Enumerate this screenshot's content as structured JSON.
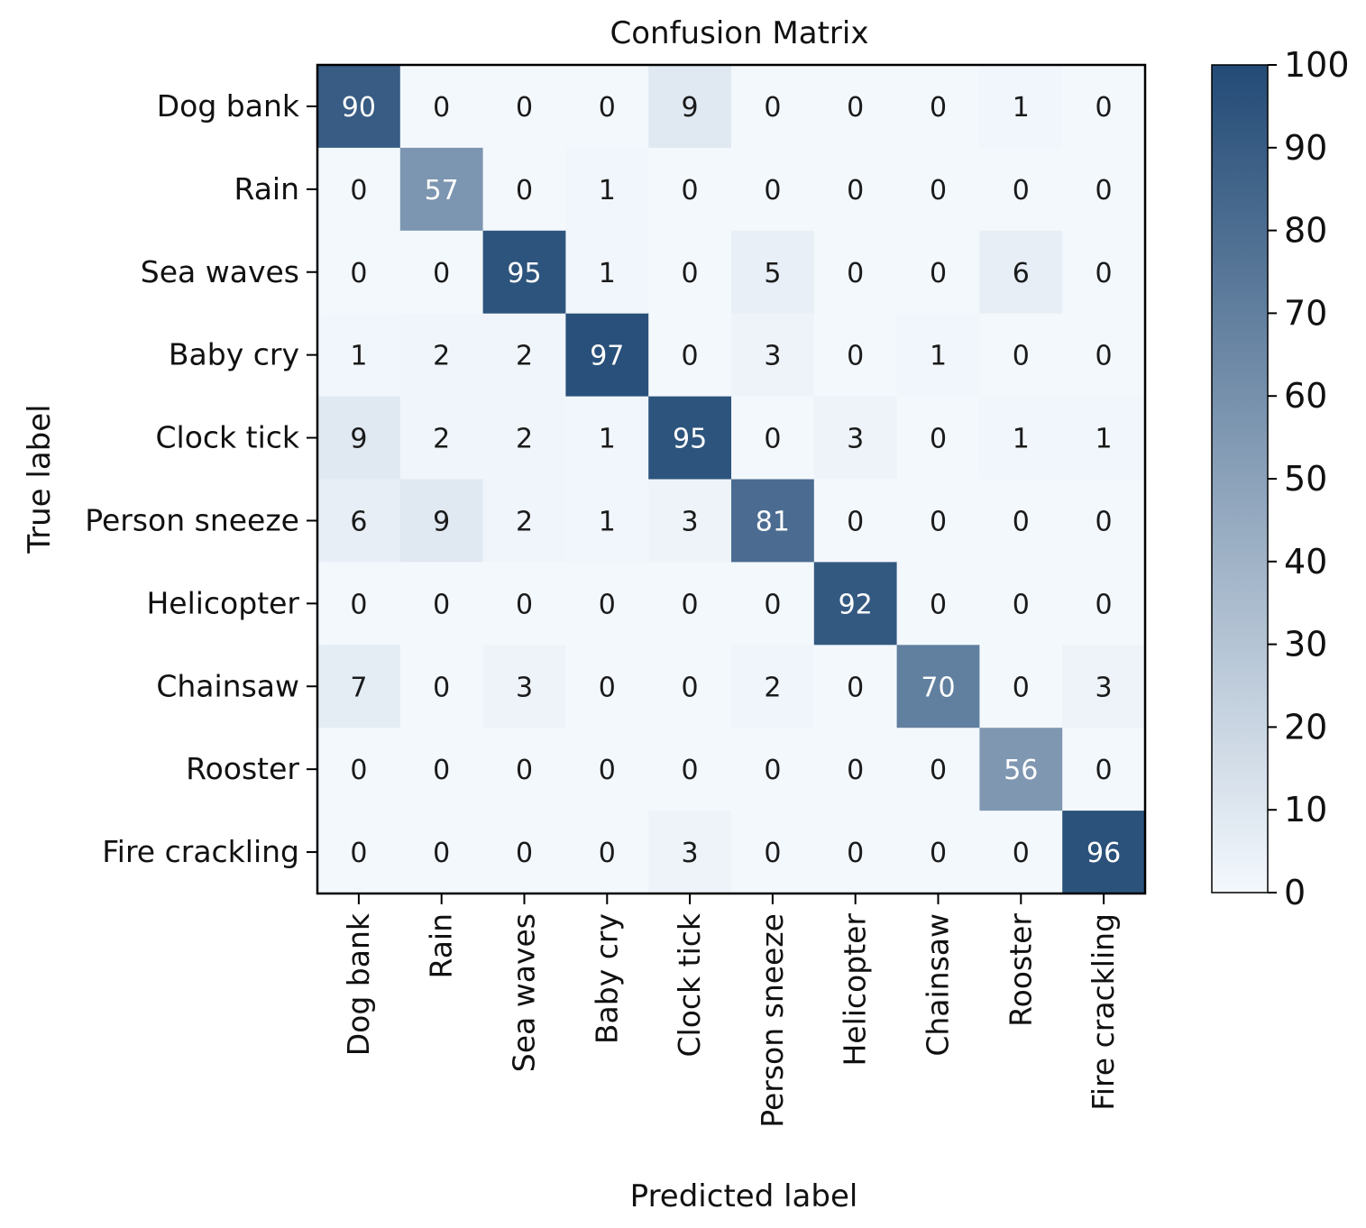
{
  "chart_data": {
    "type": "heatmap",
    "title": "Confusion Matrix",
    "xlabel": "Predicted label",
    "ylabel": "True label",
    "row_labels": [
      "Dog bank",
      "Rain",
      "Sea waves",
      "Baby cry",
      "Clock tick",
      "Person sneeze",
      "Helicopter",
      "Chainsaw",
      "Rooster",
      "Fire crackling"
    ],
    "col_labels": [
      "Dog bank",
      "Rain",
      "Sea waves",
      "Baby cry",
      "Clock tick",
      "Person sneeze",
      "Helicopter",
      "Chainsaw",
      "Rooster",
      "Fire crackling"
    ],
    "values": [
      [
        90,
        0,
        0,
        0,
        9,
        0,
        0,
        0,
        1,
        0
      ],
      [
        0,
        57,
        0,
        1,
        0,
        0,
        0,
        0,
        0,
        0
      ],
      [
        0,
        0,
        95,
        1,
        0,
        5,
        0,
        0,
        6,
        0
      ],
      [
        1,
        2,
        2,
        97,
        0,
        3,
        0,
        1,
        0,
        0
      ],
      [
        9,
        2,
        2,
        1,
        95,
        0,
        3,
        0,
        1,
        1
      ],
      [
        6,
        9,
        2,
        1,
        3,
        81,
        0,
        0,
        0,
        0
      ],
      [
        0,
        0,
        0,
        0,
        0,
        0,
        92,
        0,
        0,
        0
      ],
      [
        7,
        0,
        3,
        0,
        0,
        2,
        0,
        70,
        0,
        3
      ],
      [
        0,
        0,
        0,
        0,
        0,
        0,
        0,
        0,
        56,
        0
      ],
      [
        0,
        0,
        0,
        0,
        3,
        0,
        0,
        0,
        0,
        96
      ]
    ],
    "colorbar": {
      "range": [
        0,
        100
      ],
      "ticks": [
        "0",
        "10",
        "20",
        "30",
        "40",
        "50",
        "60",
        "70",
        "80",
        "90",
        "100"
      ]
    },
    "colormap": {
      "low": "#f3f8fd",
      "high": "#234b76"
    },
    "text_colors": {
      "dark": "#1a1a1a",
      "light": "#ffffff"
    }
  }
}
